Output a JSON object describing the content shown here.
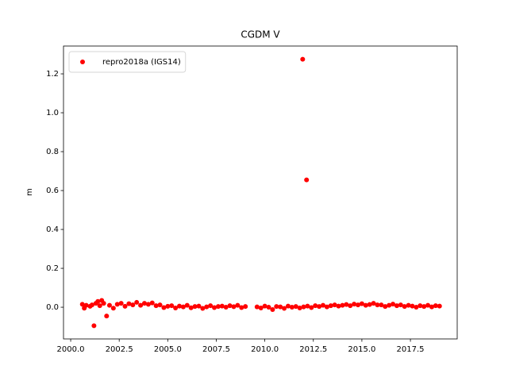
{
  "chart_data": {
    "type": "scatter",
    "title": "CGDM V",
    "y_label": "m",
    "legend": "upper left",
    "x": [
      2000.6,
      2000.7,
      2000.8,
      2001.0,
      2001.1,
      2001.2,
      2001.3,
      2001.4,
      2001.5,
      2001.6,
      2001.7,
      2001.85,
      2002.0,
      2002.2,
      2002.4,
      2002.6,
      2002.8,
      2003.0,
      2003.2,
      2003.4,
      2003.6,
      2003.8,
      2004.0,
      2004.2,
      2004.4,
      2004.6,
      2004.8,
      2005.0,
      2005.2,
      2005.4,
      2005.6,
      2005.8,
      2006.0,
      2006.2,
      2006.4,
      2006.6,
      2006.8,
      2007.0,
      2007.2,
      2007.4,
      2007.6,
      2007.8,
      2008.0,
      2008.2,
      2008.4,
      2008.6,
      2008.8,
      2009.0,
      2009.6,
      2009.8,
      2010.0,
      2010.2,
      2010.4,
      2010.6,
      2010.8,
      2011.0,
      2011.2,
      2011.4,
      2011.6,
      2011.8,
      2011.95,
      2012.0,
      2012.15,
      2012.2,
      2012.4,
      2012.6,
      2012.8,
      2013.0,
      2013.2,
      2013.4,
      2013.6,
      2013.8,
      2014.0,
      2014.2,
      2014.4,
      2014.6,
      2014.8,
      2015.0,
      2015.2,
      2015.4,
      2015.6,
      2015.8,
      2016.0,
      2016.2,
      2016.4,
      2016.6,
      2016.8,
      2017.0,
      2017.2,
      2017.4,
      2017.6,
      2017.8,
      2018.0,
      2018.2,
      2018.4,
      2018.6,
      2018.8,
      2019.0
    ],
    "series": [
      {
        "name": "repro2018a (IGS14)",
        "color": "#ff0000",
        "values": [
          0.015,
          -0.005,
          0.01,
          0.005,
          0.012,
          -0.095,
          0.02,
          0.03,
          0.008,
          0.035,
          0.02,
          -0.045,
          0.01,
          -0.005,
          0.015,
          0.02,
          0.005,
          0.018,
          0.012,
          0.025,
          0.01,
          0.02,
          0.015,
          0.022,
          0.008,
          0.012,
          -0.002,
          0.005,
          0.008,
          -0.004,
          0.006,
          0.002,
          0.01,
          -0.003,
          0.004,
          0.006,
          -0.006,
          0.002,
          0.008,
          -0.002,
          0.004,
          0.006,
          0.0,
          0.008,
          0.003,
          0.01,
          -0.002,
          0.004,
          0.002,
          -0.004,
          0.006,
          0.0,
          -0.012,
          0.004,
          0.002,
          -0.006,
          0.006,
          0.0,
          0.004,
          -0.004,
          1.275,
          0.002,
          0.655,
          0.006,
          -0.002,
          0.008,
          0.004,
          0.01,
          0.002,
          0.008,
          0.012,
          0.006,
          0.01,
          0.014,
          0.008,
          0.016,
          0.012,
          0.018,
          0.01,
          0.014,
          0.02,
          0.012,
          0.012,
          0.004,
          0.01,
          0.016,
          0.008,
          0.012,
          0.004,
          0.01,
          0.006,
          0.0,
          0.008,
          0.004,
          0.01,
          0.002,
          0.008,
          0.006
        ]
      }
    ],
    "xlim": [
      1999.63,
      2019.91
    ],
    "ylim": [
      -0.163,
      1.343
    ],
    "xticks": [
      {
        "value": 2000,
        "label": "2000.0"
      },
      {
        "value": 2002.5,
        "label": "2002.5"
      },
      {
        "value": 2005,
        "label": "2005.0"
      },
      {
        "value": 2007.5,
        "label": "2007.5"
      },
      {
        "value": 2010,
        "label": "2010.0"
      },
      {
        "value": 2012.5,
        "label": "2012.5"
      },
      {
        "value": 2015,
        "label": "2015.0"
      },
      {
        "value": 2017.5,
        "label": "2017.5"
      }
    ],
    "yticks": [
      {
        "value": 0,
        "label": "0.0"
      },
      0.2,
      0.4,
      0.6,
      0.8,
      {
        "value": 1,
        "label": "1.0"
      },
      1.2
    ],
    "grid": false
  }
}
